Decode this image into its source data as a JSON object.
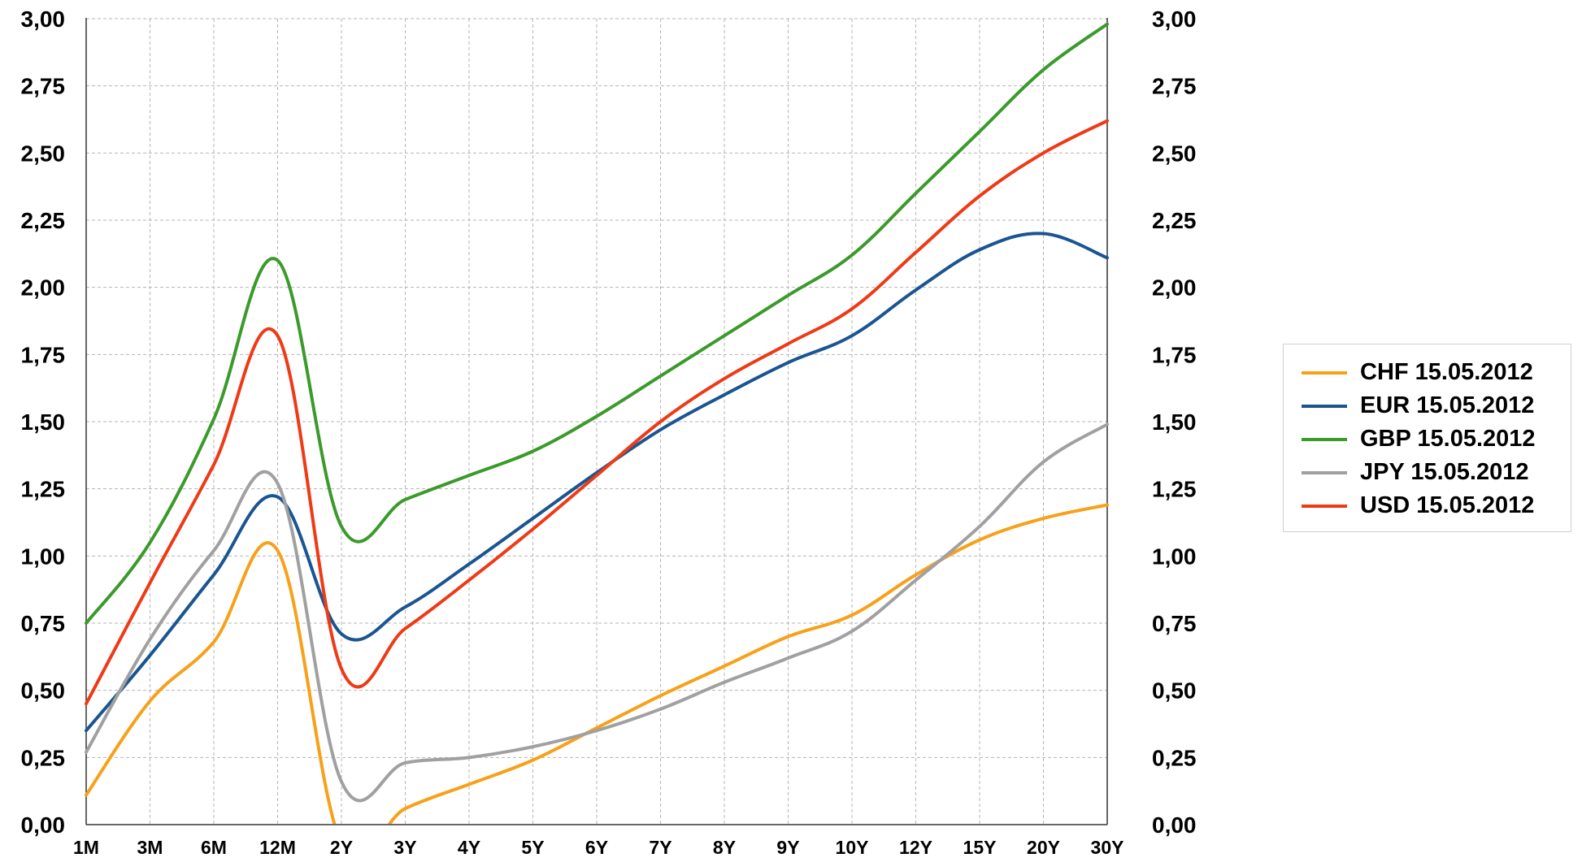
{
  "chart_data": {
    "type": "line",
    "categories": [
      "1M",
      "3M",
      "6M",
      "12M",
      "2Y",
      "3Y",
      "4Y",
      "5Y",
      "6Y",
      "7Y",
      "8Y",
      "9Y",
      "10Y",
      "12Y",
      "15Y",
      "20Y",
      "30Y"
    ],
    "yticks": [
      "0,00",
      "0,25",
      "0,50",
      "0,75",
      "1,00",
      "1,25",
      "1,50",
      "1,75",
      "2,00",
      "2,25",
      "2,50",
      "2,75",
      "3,00"
    ],
    "ylim": [
      0,
      3
    ],
    "grid": true,
    "legend_position": "right",
    "series": [
      {
        "name": "CHF 15.05.2012",
        "color": "#F7A11A",
        "values": [
          0.11,
          0.46,
          0.68,
          1.02,
          -0.07,
          0.06,
          0.15,
          0.24,
          0.36,
          0.48,
          0.59,
          0.7,
          0.78,
          0.93,
          1.06,
          1.14,
          1.19
        ]
      },
      {
        "name": "EUR 15.05.2012",
        "color": "#1A5592",
        "values": [
          0.35,
          0.63,
          0.93,
          1.22,
          0.71,
          0.81,
          0.97,
          1.14,
          1.31,
          1.47,
          1.6,
          1.72,
          1.82,
          1.99,
          2.14,
          2.2,
          2.11
        ]
      },
      {
        "name": "GBP 15.05.2012",
        "color": "#3A9A2A",
        "values": [
          0.75,
          1.05,
          1.51,
          2.1,
          1.11,
          1.21,
          1.3,
          1.39,
          1.52,
          1.67,
          1.82,
          1.97,
          2.12,
          2.35,
          2.58,
          2.81,
          2.98
        ]
      },
      {
        "name": "JPY 15.05.2012",
        "color": "#A0A0A0",
        "values": [
          0.27,
          0.69,
          1.02,
          1.27,
          0.16,
          0.23,
          0.25,
          0.29,
          0.35,
          0.43,
          0.53,
          0.62,
          0.72,
          0.91,
          1.11,
          1.35,
          1.49
        ]
      },
      {
        "name": "USD 15.05.2012",
        "color": "#EE3A16",
        "values": [
          0.45,
          0.9,
          1.34,
          1.82,
          0.58,
          0.73,
          0.91,
          1.1,
          1.3,
          1.5,
          1.66,
          1.79,
          1.92,
          2.13,
          2.34,
          2.5,
          2.62
        ]
      }
    ]
  }
}
